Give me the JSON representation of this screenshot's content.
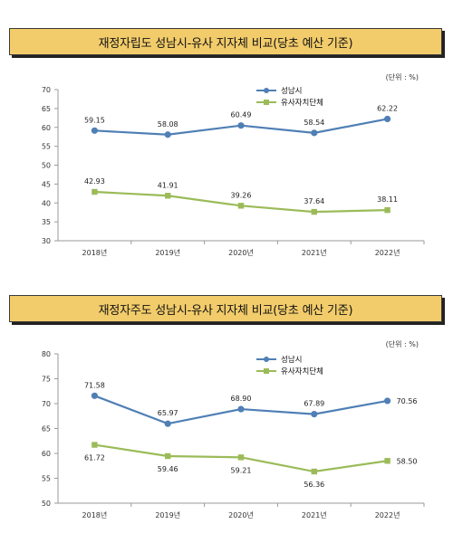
{
  "chart_data": [
    {
      "type": "line",
      "title": "재정자립도 성남시-유사 지자체 비교(당초 예산 기준)",
      "unit_label": "(단위 : %)",
      "categories": [
        "2018년",
        "2019년",
        "2020년",
        "2021년",
        "2022년"
      ],
      "ylim": [
        30,
        70
      ],
      "yticks": [
        30,
        35,
        40,
        45,
        50,
        55,
        60,
        65,
        70
      ],
      "series": [
        {
          "name": "성남시",
          "color": "#4f7fb5",
          "marker": "circle",
          "values": [
            59.15,
            58.08,
            60.49,
            58.54,
            62.22
          ],
          "labels": [
            "59.15",
            "58.08",
            "60.49",
            "58.54",
            "62.22"
          ],
          "label_pos": "above"
        },
        {
          "name": "유사자치단체",
          "color": "#9bbb59",
          "marker": "square",
          "values": [
            42.93,
            41.91,
            39.26,
            37.64,
            38.11
          ],
          "labels": [
            "42.93",
            "41.91",
            "39.26",
            "37.64",
            "38.11"
          ],
          "label_pos": "above"
        }
      ],
      "legend": "top-right",
      "grid": false
    },
    {
      "type": "line",
      "title": "재정자주도 성남시-유사 지자체 비교(당초 예산 기준)",
      "unit_label": "(단위 : %)",
      "categories": [
        "2018년",
        "2019년",
        "2020년",
        "2021년",
        "2022년"
      ],
      "ylim": [
        50,
        80
      ],
      "yticks": [
        50,
        55,
        60,
        65,
        70,
        75,
        80
      ],
      "series": [
        {
          "name": "성남시",
          "color": "#4f7fb5",
          "marker": "circle",
          "values": [
            71.58,
            65.97,
            68.9,
            67.89,
            70.56
          ],
          "labels": [
            "71.58",
            "65.97",
            "68.90",
            "67.89",
            "70.56"
          ],
          "label_pos": [
            "above",
            "above",
            "above",
            "above",
            "right"
          ]
        },
        {
          "name": "유사자치단체",
          "color": "#9bbb59",
          "marker": "square",
          "values": [
            61.72,
            59.46,
            59.21,
            56.36,
            58.5
          ],
          "labels": [
            "61.72",
            "59.46",
            "59.21",
            "56.36",
            "58.50"
          ],
          "label_pos": [
            "below",
            "below",
            "below",
            "below",
            "right"
          ]
        }
      ],
      "legend": "top-right",
      "grid": false
    }
  ]
}
